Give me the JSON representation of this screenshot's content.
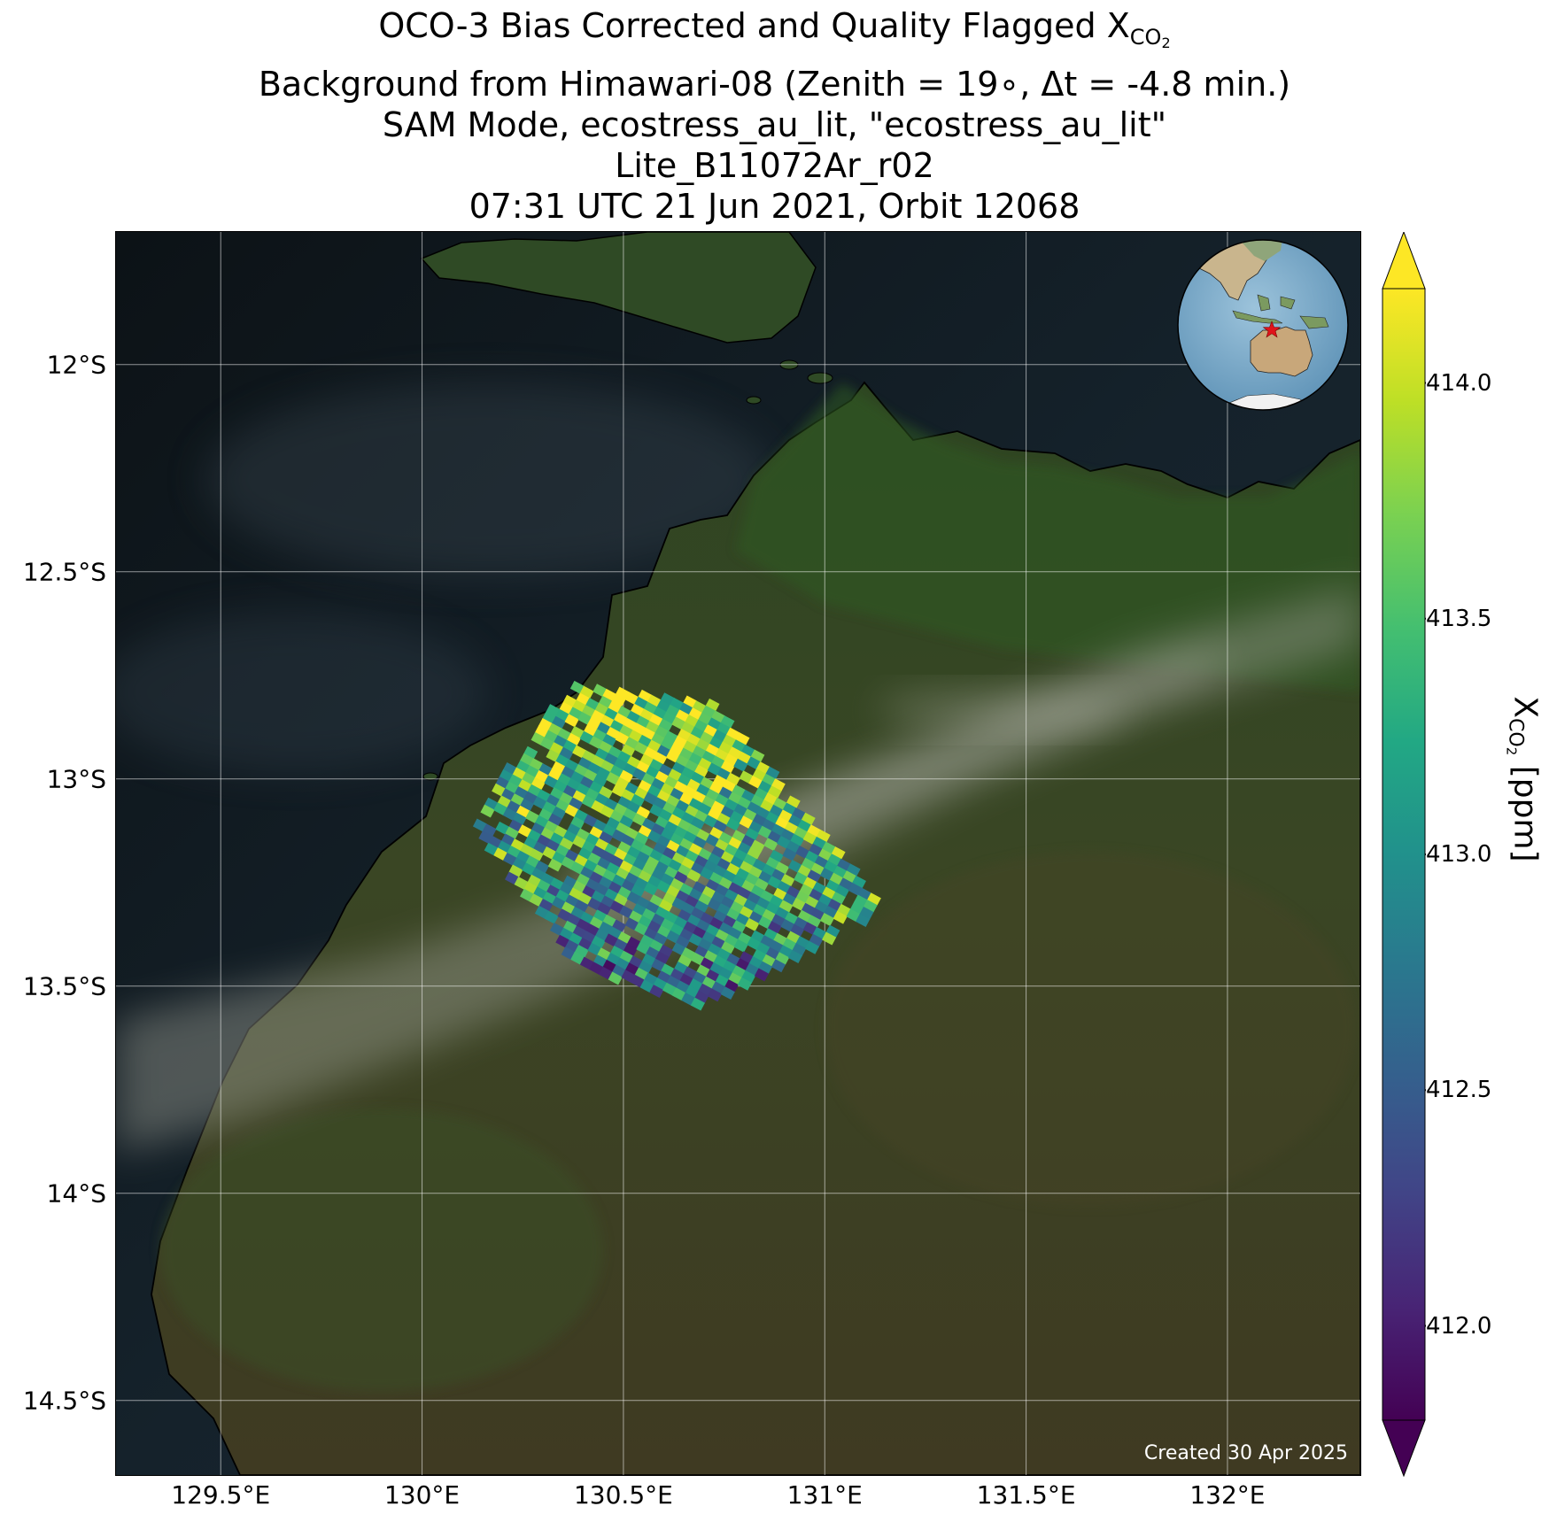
{
  "title": {
    "line1_prefix": "OCO-3 Bias Corrected and Quality Flagged X",
    "line1_sub": "CO",
    "line1_subsub": "2",
    "line2": "Background from Himawari-08 (Zenith = 19∘, Δt = -4.8 min.)",
    "line3": "SAM Mode, ecostress_au_lit, \"ecostress_au_lit\"",
    "line4": "Lite_B11072Ar_r02",
    "line5": "07:31 UTC 21 Jun 2021, Orbit 12068"
  },
  "map": {
    "lon_range": [
      129.24,
      132.33
    ],
    "lat_range": [
      -14.68,
      -11.68
    ],
    "lat_ticks": [
      {
        "value": -12.0,
        "label": "12°S"
      },
      {
        "value": -12.5,
        "label": "12.5°S"
      },
      {
        "value": -13.0,
        "label": "13°S"
      },
      {
        "value": -13.5,
        "label": "13.5°S"
      },
      {
        "value": -14.0,
        "label": "14°S"
      },
      {
        "value": -14.5,
        "label": "14.5°S"
      }
    ],
    "lon_ticks": [
      {
        "value": 129.5,
        "label": "129.5°E"
      },
      {
        "value": 130.0,
        "label": "130°E"
      },
      {
        "value": 130.5,
        "label": "130.5°E"
      },
      {
        "value": 131.0,
        "label": "131°E"
      },
      {
        "value": 131.5,
        "label": "131.5°E"
      },
      {
        "value": 132.0,
        "label": "132°E"
      }
    ],
    "grid": true,
    "sounding_swath": {
      "corners_lonlat": [
        [
          130.37,
          -12.77
        ],
        [
          130.73,
          -12.82
        ],
        [
          131.15,
          -13.31
        ],
        [
          130.7,
          -13.55
        ],
        [
          130.38,
          -13.45
        ],
        [
          130.12,
          -13.1
        ]
      ],
      "value_range_ppm": [
        411.8,
        414.2
      ]
    },
    "locator_globe": {
      "marker": "red-star",
      "marker_location": "northern Australia"
    }
  },
  "colorbar": {
    "colormap": "viridis",
    "vmin": 411.8,
    "vmax": 414.2,
    "extend": "both",
    "ticks": [
      {
        "value": 412.0,
        "label": "412.0"
      },
      {
        "value": 412.5,
        "label": "412.5"
      },
      {
        "value": 413.0,
        "label": "413.0"
      },
      {
        "value": 413.5,
        "label": "413.5"
      },
      {
        "value": 414.0,
        "label": "414.0"
      }
    ],
    "label_prefix": "X",
    "label_sub": "CO",
    "label_subsub": "2",
    "label_suffix": " [ppm]"
  },
  "created_note": "Created 30 Apr 2025"
}
